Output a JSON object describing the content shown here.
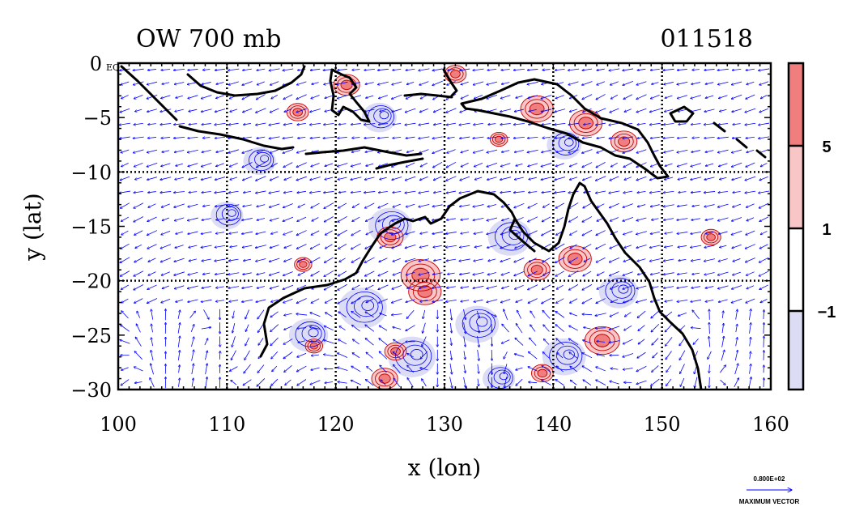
{
  "chart_data": {
    "type": "contour",
    "title_left": "OW 700 mb",
    "title_right": "011518",
    "xlabel": "x (lon)",
    "ylabel": "y (lat)",
    "xlim": [
      100,
      160
    ],
    "ylim": [
      -30,
      0
    ],
    "x_ticks": [
      100,
      110,
      120,
      130,
      140,
      150,
      160
    ],
    "y_ticks": [
      0,
      -5,
      -10,
      -15,
      -20,
      -25,
      -30
    ],
    "y_tick_labels": [
      "0 EQ",
      "−5",
      "−10",
      "−15",
      "−20",
      "−25",
      "−30"
    ],
    "grid_x": [
      110,
      120,
      130,
      140,
      150
    ],
    "grid_y": [
      -10,
      -20
    ],
    "colorbar": {
      "levels": [
        -1,
        1,
        5
      ],
      "labels": [
        "−1",
        "1",
        "5"
      ],
      "colors": [
        "#dcdcf4",
        "#ffffff",
        "#f8c6c6",
        "#f07e7e"
      ]
    },
    "vector_key": {
      "value_label": "0.800E+02",
      "caption": "MAXIMUM VECTOR"
    },
    "colors": {
      "positive_contour": "#c80000",
      "negative_contour": "#0000ff",
      "vector": "#0000ff",
      "coast": "#000000"
    },
    "positive_regions": [
      {
        "lon": 125.0,
        "lat": -16.0,
        "r": 1.2
      },
      {
        "lon": 127.8,
        "lat": -19.5,
        "r": 1.8
      },
      {
        "lon": 128.2,
        "lat": -21.0,
        "r": 1.5
      },
      {
        "lon": 125.5,
        "lat": -26.5,
        "r": 1.0
      },
      {
        "lon": 124.5,
        "lat": -29.0,
        "r": 1.2
      },
      {
        "lon": 138.5,
        "lat": -19.0,
        "r": 1.2
      },
      {
        "lon": 142.0,
        "lat": -18.0,
        "r": 1.5
      },
      {
        "lon": 144.5,
        "lat": -25.5,
        "r": 1.6
      },
      {
        "lon": 139.0,
        "lat": -28.5,
        "r": 1.0
      },
      {
        "lon": 117.0,
        "lat": -18.5,
        "r": 0.8
      },
      {
        "lon": 118.0,
        "lat": -26.0,
        "r": 0.8
      },
      {
        "lon": 154.5,
        "lat": -16.0,
        "r": 0.9
      },
      {
        "lon": 116.5,
        "lat": -4.5,
        "r": 1.0
      },
      {
        "lon": 121.0,
        "lat": -2.0,
        "r": 1.2
      },
      {
        "lon": 138.5,
        "lat": -4.2,
        "r": 1.5
      },
      {
        "lon": 143.0,
        "lat": -5.5,
        "r": 1.5
      },
      {
        "lon": 146.5,
        "lat": -7.2,
        "r": 1.2
      },
      {
        "lon": 131.0,
        "lat": -1.0,
        "r": 1.0
      },
      {
        "lon": 135.0,
        "lat": -7.0,
        "r": 0.8
      }
    ],
    "negative_regions": [
      {
        "lon": 117.5,
        "lat": -25.0,
        "r": 1.8
      },
      {
        "lon": 122.5,
        "lat": -22.5,
        "r": 2.2
      },
      {
        "lon": 127.0,
        "lat": -27.0,
        "r": 2.2
      },
      {
        "lon": 125.0,
        "lat": -15.0,
        "r": 2.0
      },
      {
        "lon": 136.0,
        "lat": -16.0,
        "r": 2.0
      },
      {
        "lon": 133.0,
        "lat": -24.0,
        "r": 2.0
      },
      {
        "lon": 141.0,
        "lat": -27.0,
        "r": 2.0
      },
      {
        "lon": 146.0,
        "lat": -21.0,
        "r": 1.8
      },
      {
        "lon": 113.0,
        "lat": -9.0,
        "r": 1.5
      },
      {
        "lon": 110.0,
        "lat": -14.0,
        "r": 1.5
      },
      {
        "lon": 124.0,
        "lat": -5.0,
        "r": 1.6
      },
      {
        "lon": 141.0,
        "lat": -7.5,
        "r": 1.6
      },
      {
        "lon": 135.0,
        "lat": -29.0,
        "r": 1.5
      }
    ]
  }
}
